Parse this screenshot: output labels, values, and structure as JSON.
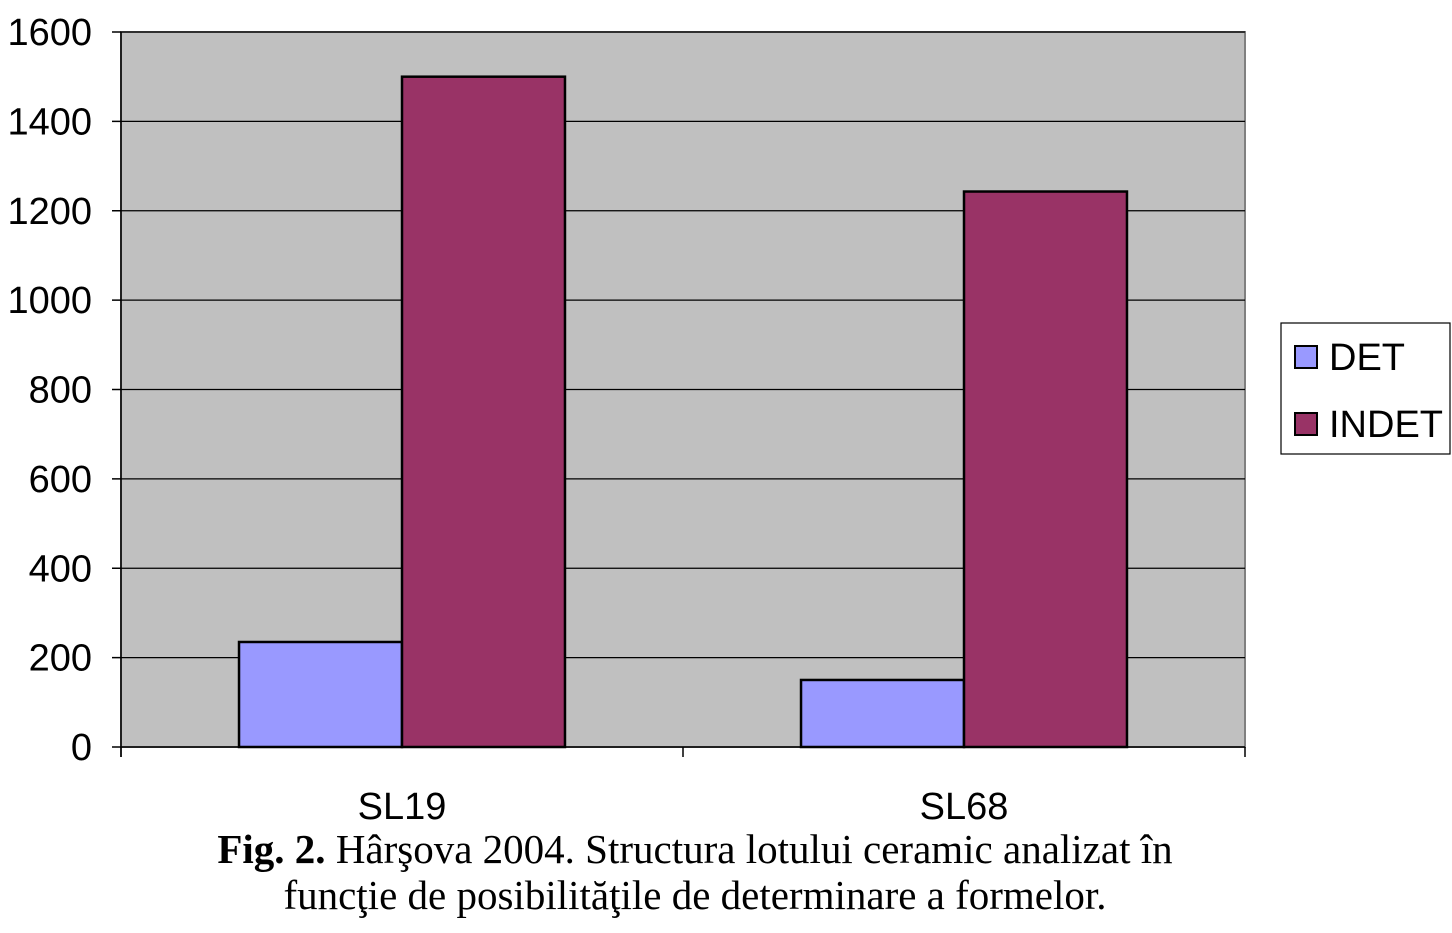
{
  "chart_data": {
    "type": "bar",
    "categories": [
      "SL19",
      "SL68"
    ],
    "series": [
      {
        "name": "DET",
        "values": [
          235,
          150
        ],
        "color": "#9999ff"
      },
      {
        "name": "INDET",
        "values": [
          1500,
          1243
        ],
        "color": "#993366"
      }
    ],
    "ylim": [
      0,
      1600
    ],
    "y_ticks": [
      0,
      200,
      400,
      600,
      800,
      1000,
      1200,
      1400,
      1600
    ],
    "grid": true,
    "plot_background": "#c0c0c0",
    "legend_position": "right"
  },
  "caption": {
    "label": "Fig. 2.",
    "line1": "Hârşova 2004. Structura lotului ceramic analizat în",
    "line2": "funcţie de posibilităţile de determinare a formelor."
  }
}
